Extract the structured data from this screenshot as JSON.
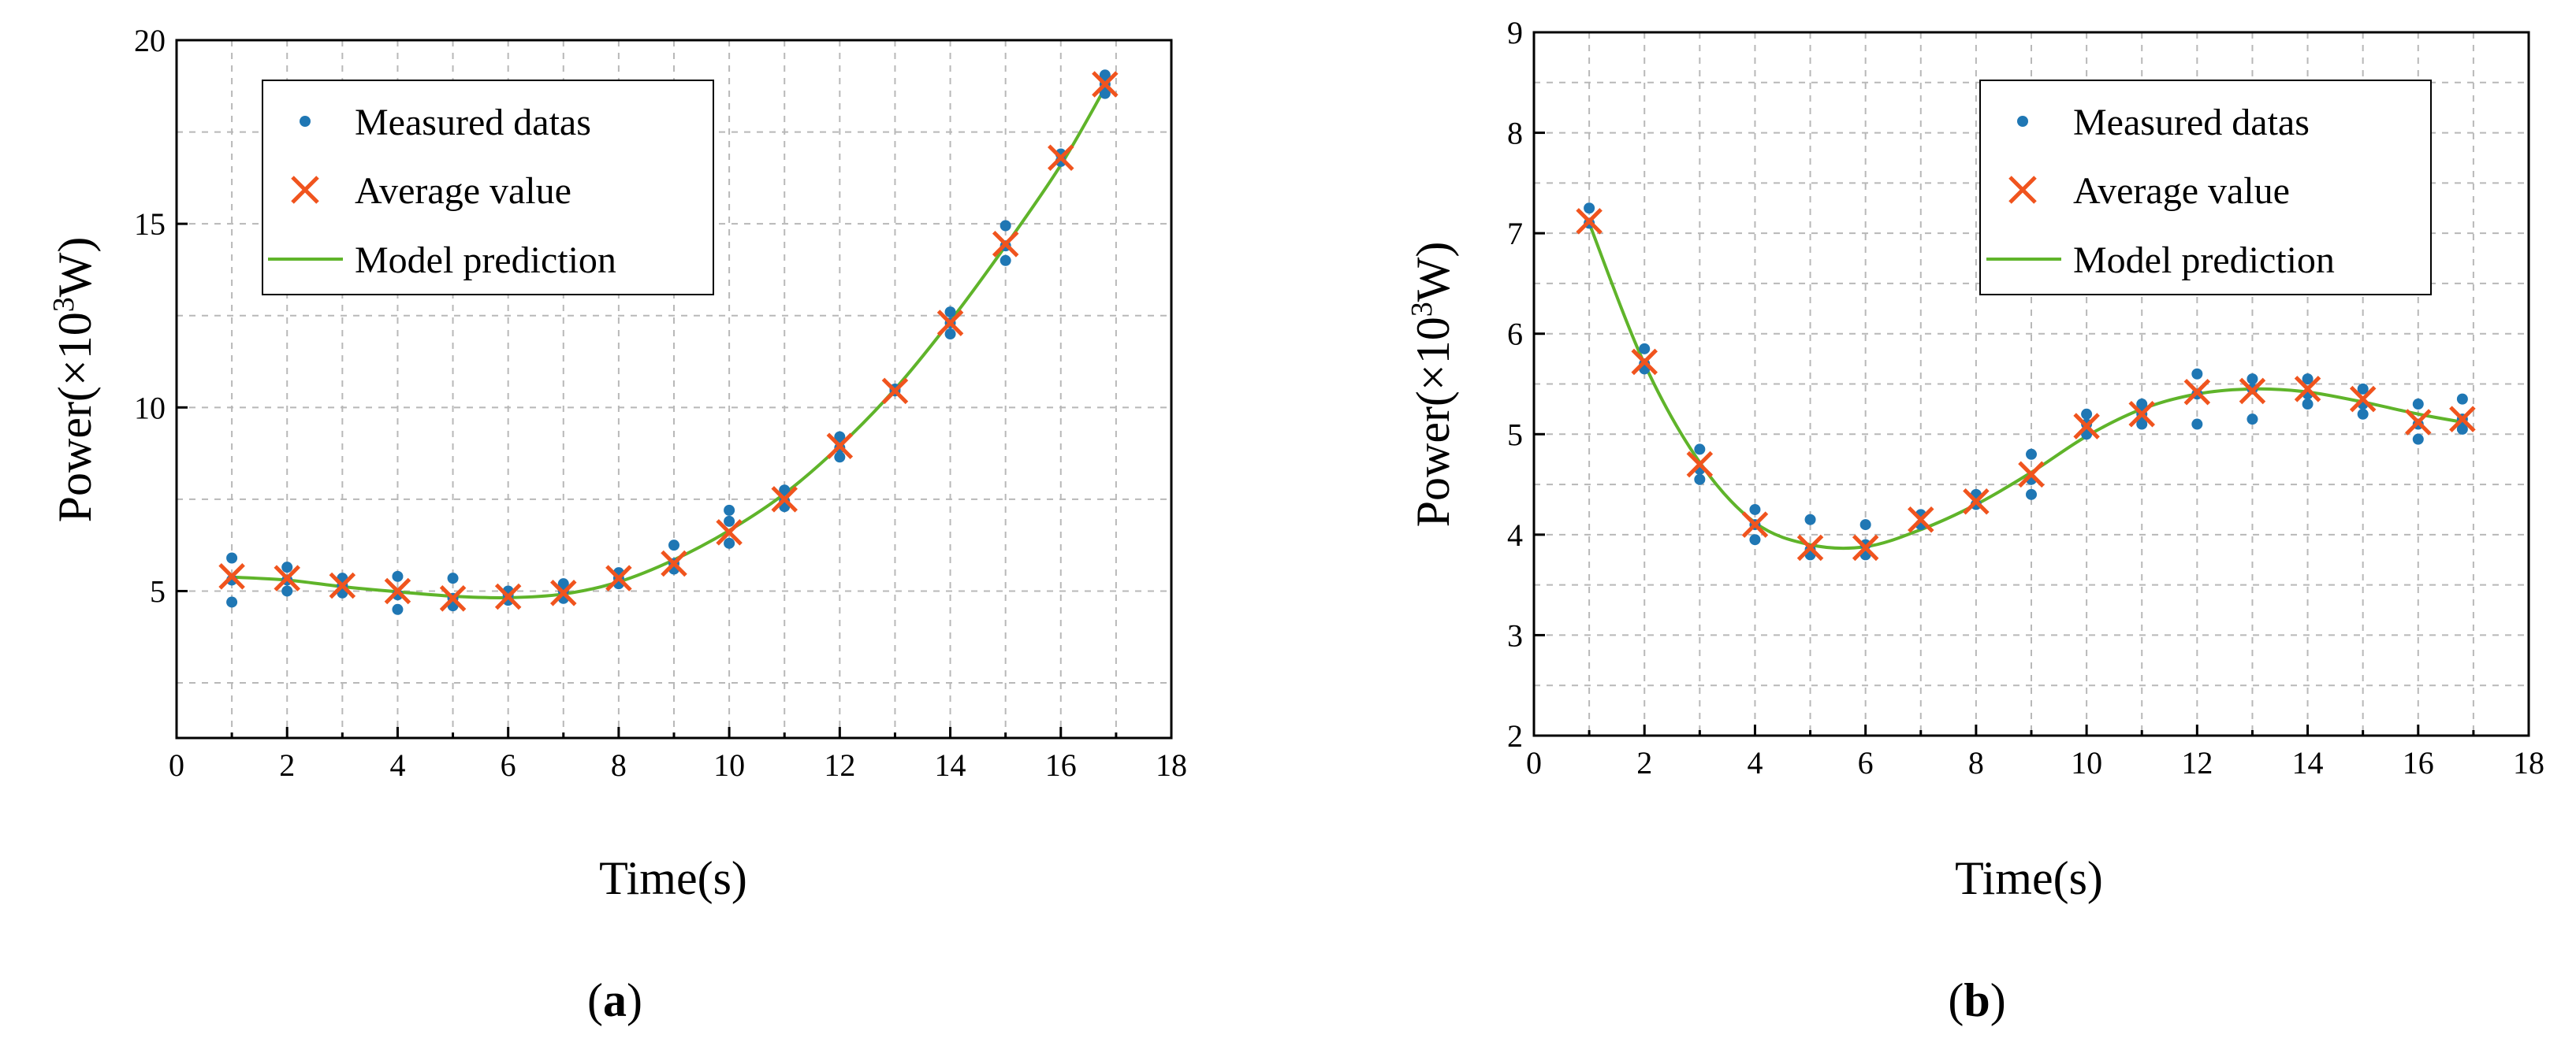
{
  "colors": {
    "measured": "#1f77b4",
    "average": "#f0541e",
    "model": "#5fb42a",
    "grid": "#b8b8b8",
    "frame": "#000000"
  },
  "chart_data": [
    {
      "type": "scatter",
      "panel_label": "a",
      "panel_label_display": "(a)",
      "xlabel": "Time(s)",
      "ylabel_main": "Power(×10",
      "ylabel_sup": "3",
      "ylabel_end": "W)",
      "xlim": [
        0,
        18
      ],
      "ylim": [
        1,
        20
      ],
      "xticks": [
        0,
        2,
        4,
        6,
        8,
        10,
        12,
        14,
        16,
        18
      ],
      "yticks": [
        5,
        10,
        15,
        20
      ],
      "ygrid": [
        2.5,
        5,
        7.5,
        10,
        12.5,
        15,
        17.5,
        20
      ],
      "grid": true,
      "legend": {
        "position": "top-left",
        "entries": [
          "Measured datas",
          "Average value",
          "Model prediction"
        ]
      },
      "series": [
        {
          "name": "Measured datas",
          "marker": "dot",
          "points": [
            [
              1,
              5.9
            ],
            [
              1,
              5.3
            ],
            [
              1,
              4.7
            ],
            [
              2,
              5.65
            ],
            [
              2,
              5.3
            ],
            [
              2,
              5.0
            ],
            [
              3,
              5.35
            ],
            [
              3,
              5.15
            ],
            [
              3,
              4.95
            ],
            [
              4,
              5.4
            ],
            [
              4,
              4.9
            ],
            [
              4,
              4.5
            ],
            [
              5,
              5.35
            ],
            [
              5,
              4.8
            ],
            [
              5,
              4.6
            ],
            [
              6,
              5.0
            ],
            [
              6,
              4.9
            ],
            [
              6,
              4.75
            ],
            [
              7,
              5.2
            ],
            [
              7,
              5.0
            ],
            [
              7,
              4.8
            ],
            [
              8,
              5.5
            ],
            [
              8,
              5.35
            ],
            [
              8,
              5.2
            ],
            [
              9,
              6.25
            ],
            [
              9,
              5.75
            ],
            [
              9,
              5.6
            ],
            [
              10,
              7.2
            ],
            [
              10,
              6.9
            ],
            [
              10,
              6.3
            ],
            [
              11,
              7.75
            ],
            [
              11,
              7.45
            ],
            [
              11,
              7.3
            ],
            [
              12,
              9.2
            ],
            [
              12,
              8.9
            ],
            [
              12,
              8.65
            ],
            [
              13,
              10.5
            ],
            [
              13,
              10.45
            ],
            [
              14,
              12.6
            ],
            [
              14,
              12.3
            ],
            [
              14,
              12.0
            ],
            [
              15,
              14.95
            ],
            [
              15,
              14.4
            ],
            [
              15,
              14.0
            ],
            [
              16,
              16.9
            ],
            [
              16,
              16.7
            ],
            [
              16.8,
              19.05
            ],
            [
              16.8,
              18.8
            ],
            [
              16.8,
              18.55
            ]
          ]
        },
        {
          "name": "Average value",
          "marker": "x",
          "points": [
            [
              1,
              5.4
            ],
            [
              2,
              5.35
            ],
            [
              3,
              5.15
            ],
            [
              4,
              5.0
            ],
            [
              5,
              4.8
            ],
            [
              6,
              4.85
            ],
            [
              7,
              4.95
            ],
            [
              8,
              5.35
            ],
            [
              9,
              5.75
            ],
            [
              10,
              6.6
            ],
            [
              11,
              7.5
            ],
            [
              12,
              8.95
            ],
            [
              13,
              10.45
            ],
            [
              14,
              12.3
            ],
            [
              15,
              14.45
            ],
            [
              16,
              16.8
            ],
            [
              16.8,
              18.8
            ]
          ]
        },
        {
          "name": "Model prediction",
          "marker": "line",
          "points": [
            [
              1,
              5.38
            ],
            [
              2,
              5.3
            ],
            [
              3,
              5.12
            ],
            [
              4,
              4.98
            ],
            [
              5,
              4.86
            ],
            [
              6,
              4.82
            ],
            [
              7,
              4.92
            ],
            [
              8,
              5.25
            ],
            [
              9,
              5.85
            ],
            [
              10,
              6.65
            ],
            [
              11,
              7.65
            ],
            [
              12,
              8.95
            ],
            [
              13,
              10.5
            ],
            [
              14,
              12.35
            ],
            [
              15,
              14.4
            ],
            [
              16,
              16.6
            ],
            [
              16.8,
              18.7
            ]
          ]
        }
      ]
    },
    {
      "type": "scatter",
      "panel_label": "b",
      "panel_label_display": "(b)",
      "xlabel": "Time(s)",
      "ylabel_main": "Power(×10",
      "ylabel_sup": "3",
      "ylabel_end": "W)",
      "xlim": [
        0,
        18
      ],
      "ylim": [
        2,
        9
      ],
      "xticks": [
        0,
        2,
        4,
        6,
        8,
        10,
        12,
        14,
        16,
        18
      ],
      "yticks": [
        2,
        3,
        4,
        5,
        6,
        7,
        8,
        9
      ],
      "ygrid": [
        2.5,
        3,
        3.5,
        4,
        4.5,
        5,
        5.5,
        6,
        6.5,
        7,
        7.5,
        8,
        8.5,
        9
      ],
      "grid": true,
      "legend": {
        "position": "top-right",
        "entries": [
          "Measured datas",
          "Average value",
          "Model prediction"
        ]
      },
      "series": [
        {
          "name": "Measured datas",
          "marker": "dot",
          "points": [
            [
              1,
              7.25
            ],
            [
              1,
              7.1
            ],
            [
              2,
              5.85
            ],
            [
              2,
              5.7
            ],
            [
              2,
              5.65
            ],
            [
              3,
              4.85
            ],
            [
              3,
              4.65
            ],
            [
              3,
              4.55
            ],
            [
              4,
              4.25
            ],
            [
              4,
              4.1
            ],
            [
              4,
              3.95
            ],
            [
              5,
              4.15
            ],
            [
              5,
              3.85
            ],
            [
              5,
              3.8
            ],
            [
              6,
              4.1
            ],
            [
              6,
              3.9
            ],
            [
              6,
              3.8
            ],
            [
              7,
              4.2
            ],
            [
              7,
              4.1
            ],
            [
              8,
              4.4
            ],
            [
              8,
              4.3
            ],
            [
              9,
              4.8
            ],
            [
              9,
              4.55
            ],
            [
              9,
              4.4
            ],
            [
              10,
              5.2
            ],
            [
              10,
              5.1
            ],
            [
              10,
              5.0
            ],
            [
              11,
              5.3
            ],
            [
              11,
              5.2
            ],
            [
              11,
              5.1
            ],
            [
              12,
              5.6
            ],
            [
              12,
              5.4
            ],
            [
              12,
              5.1
            ],
            [
              13,
              5.55
            ],
            [
              13,
              5.45
            ],
            [
              13,
              5.15
            ],
            [
              14,
              5.55
            ],
            [
              14,
              5.4
            ],
            [
              14,
              5.3
            ],
            [
              15,
              5.45
            ],
            [
              15,
              5.3
            ],
            [
              15,
              5.2
            ],
            [
              16,
              5.3
            ],
            [
              16,
              5.1
            ],
            [
              16,
              4.95
            ],
            [
              16.8,
              5.35
            ],
            [
              16.8,
              5.15
            ],
            [
              16.8,
              5.05
            ]
          ]
        },
        {
          "name": "Average value",
          "marker": "x",
          "points": [
            [
              1,
              7.12
            ],
            [
              2,
              5.72
            ],
            [
              3,
              4.7
            ],
            [
              4,
              4.1
            ],
            [
              5,
              3.87
            ],
            [
              6,
              3.87
            ],
            [
              7,
              4.15
            ],
            [
              8,
              4.33
            ],
            [
              9,
              4.6
            ],
            [
              10,
              5.08
            ],
            [
              11,
              5.2
            ],
            [
              12,
              5.42
            ],
            [
              13,
              5.43
            ],
            [
              14,
              5.45
            ],
            [
              15,
              5.35
            ],
            [
              16,
              5.12
            ],
            [
              16.8,
              5.15
            ]
          ]
        },
        {
          "name": "Model prediction",
          "marker": "line",
          "points": [
            [
              1,
              7.1
            ],
            [
              2,
              5.7
            ],
            [
              3,
              4.72
            ],
            [
              4,
              4.12
            ],
            [
              5,
              3.9
            ],
            [
              6,
              3.88
            ],
            [
              7,
              4.05
            ],
            [
              8,
              4.3
            ],
            [
              9,
              4.62
            ],
            [
              10,
              4.98
            ],
            [
              11,
              5.25
            ],
            [
              12,
              5.4
            ],
            [
              13,
              5.45
            ],
            [
              14,
              5.42
            ],
            [
              15,
              5.32
            ],
            [
              16,
              5.2
            ],
            [
              16.8,
              5.12
            ]
          ]
        }
      ]
    }
  ]
}
